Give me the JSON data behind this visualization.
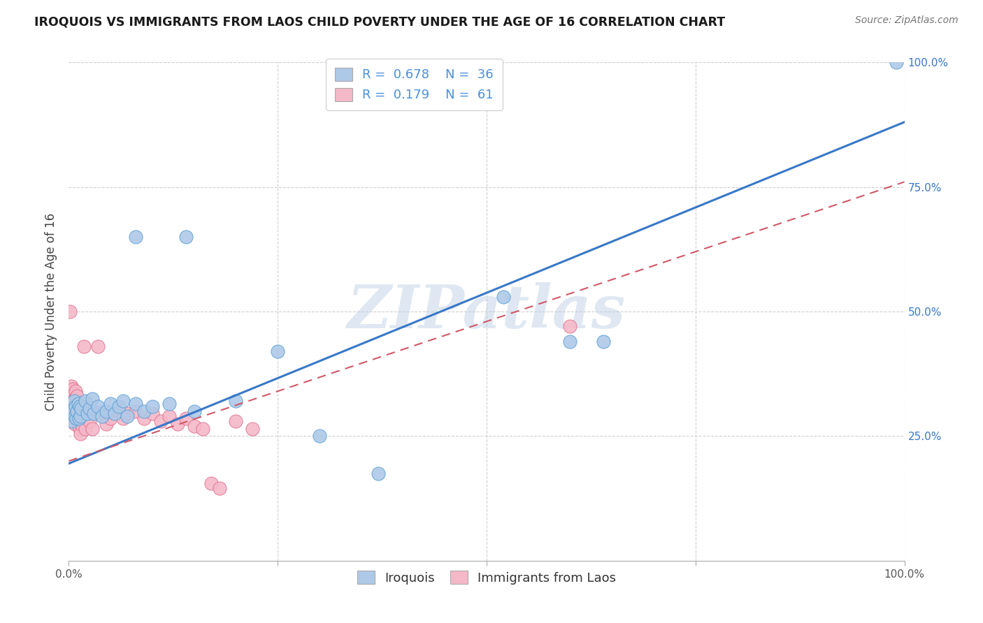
{
  "title": "IROQUOIS VS IMMIGRANTS FROM LAOS CHILD POVERTY UNDER THE AGE OF 16 CORRELATION CHART",
  "source": "Source: ZipAtlas.com",
  "ylabel": "Child Poverty Under the Age of 16",
  "xlim": [
    0,
    1
  ],
  "ylim": [
    0,
    1
  ],
  "watermark": "ZIPatlas",
  "iroquois_color": "#aec9e8",
  "iroquois_edge": "#5a9fd4",
  "laos_color": "#f5b8c8",
  "laos_edge": "#e07090",
  "blue_line_color": "#3878c8",
  "pink_line_color": "#d05868",
  "grid_color": "#d0d0d0",
  "background_color": "#ffffff",
  "blue_line_x0": 0.0,
  "blue_line_y0": 0.195,
  "blue_line_x1": 1.0,
  "blue_line_y1": 0.88,
  "pink_line_x0": 0.0,
  "pink_line_y0": 0.2,
  "pink_line_x1": 1.0,
  "pink_line_y1": 0.76,
  "iroquois_points": [
    [
      0.003,
      0.3
    ],
    [
      0.004,
      0.28
    ],
    [
      0.006,
      0.32
    ],
    [
      0.007,
      0.29
    ],
    [
      0.008,
      0.31
    ],
    [
      0.009,
      0.285
    ],
    [
      0.01,
      0.3
    ],
    [
      0.011,
      0.315
    ],
    [
      0.012,
      0.285
    ],
    [
      0.013,
      0.31
    ],
    [
      0.014,
      0.29
    ],
    [
      0.015,
      0.305
    ],
    [
      0.02,
      0.32
    ],
    [
      0.022,
      0.295
    ],
    [
      0.025,
      0.305
    ],
    [
      0.028,
      0.325
    ],
    [
      0.03,
      0.295
    ],
    [
      0.035,
      0.31
    ],
    [
      0.04,
      0.29
    ],
    [
      0.045,
      0.3
    ],
    [
      0.05,
      0.315
    ],
    [
      0.055,
      0.295
    ],
    [
      0.06,
      0.31
    ],
    [
      0.065,
      0.32
    ],
    [
      0.07,
      0.29
    ],
    [
      0.08,
      0.315
    ],
    [
      0.09,
      0.3
    ],
    [
      0.1,
      0.31
    ],
    [
      0.12,
      0.315
    ],
    [
      0.15,
      0.3
    ],
    [
      0.2,
      0.32
    ],
    [
      0.08,
      0.65
    ],
    [
      0.14,
      0.65
    ],
    [
      0.25,
      0.42
    ],
    [
      0.3,
      0.25
    ],
    [
      0.37,
      0.175
    ],
    [
      0.52,
      0.53
    ],
    [
      0.6,
      0.44
    ],
    [
      0.64,
      0.44
    ],
    [
      0.99,
      1.0
    ]
  ],
  "laos_points": [
    [
      0.001,
      0.5
    ],
    [
      0.002,
      0.32
    ],
    [
      0.002,
      0.295
    ],
    [
      0.003,
      0.35
    ],
    [
      0.003,
      0.315
    ],
    [
      0.004,
      0.34
    ],
    [
      0.004,
      0.3
    ],
    [
      0.005,
      0.345
    ],
    [
      0.005,
      0.32
    ],
    [
      0.005,
      0.295
    ],
    [
      0.006,
      0.335
    ],
    [
      0.006,
      0.31
    ],
    [
      0.006,
      0.28
    ],
    [
      0.007,
      0.325
    ],
    [
      0.007,
      0.3
    ],
    [
      0.007,
      0.275
    ],
    [
      0.008,
      0.34
    ],
    [
      0.008,
      0.31
    ],
    [
      0.008,
      0.285
    ],
    [
      0.009,
      0.32
    ],
    [
      0.009,
      0.295
    ],
    [
      0.01,
      0.33
    ],
    [
      0.01,
      0.305
    ],
    [
      0.01,
      0.28
    ],
    [
      0.011,
      0.315
    ],
    [
      0.011,
      0.29
    ],
    [
      0.012,
      0.305
    ],
    [
      0.012,
      0.275
    ],
    [
      0.013,
      0.295
    ],
    [
      0.013,
      0.265
    ],
    [
      0.014,
      0.285
    ],
    [
      0.014,
      0.255
    ],
    [
      0.015,
      0.275
    ],
    [
      0.018,
      0.43
    ],
    [
      0.02,
      0.31
    ],
    [
      0.02,
      0.265
    ],
    [
      0.022,
      0.295
    ],
    [
      0.025,
      0.28
    ],
    [
      0.028,
      0.265
    ],
    [
      0.03,
      0.3
    ],
    [
      0.035,
      0.43
    ],
    [
      0.04,
      0.295
    ],
    [
      0.045,
      0.275
    ],
    [
      0.05,
      0.285
    ],
    [
      0.06,
      0.3
    ],
    [
      0.065,
      0.285
    ],
    [
      0.07,
      0.295
    ],
    [
      0.08,
      0.3
    ],
    [
      0.09,
      0.285
    ],
    [
      0.1,
      0.295
    ],
    [
      0.11,
      0.28
    ],
    [
      0.12,
      0.29
    ],
    [
      0.13,
      0.275
    ],
    [
      0.14,
      0.285
    ],
    [
      0.15,
      0.27
    ],
    [
      0.16,
      0.265
    ],
    [
      0.17,
      0.155
    ],
    [
      0.18,
      0.145
    ],
    [
      0.2,
      0.28
    ],
    [
      0.22,
      0.265
    ],
    [
      0.6,
      0.47
    ]
  ]
}
